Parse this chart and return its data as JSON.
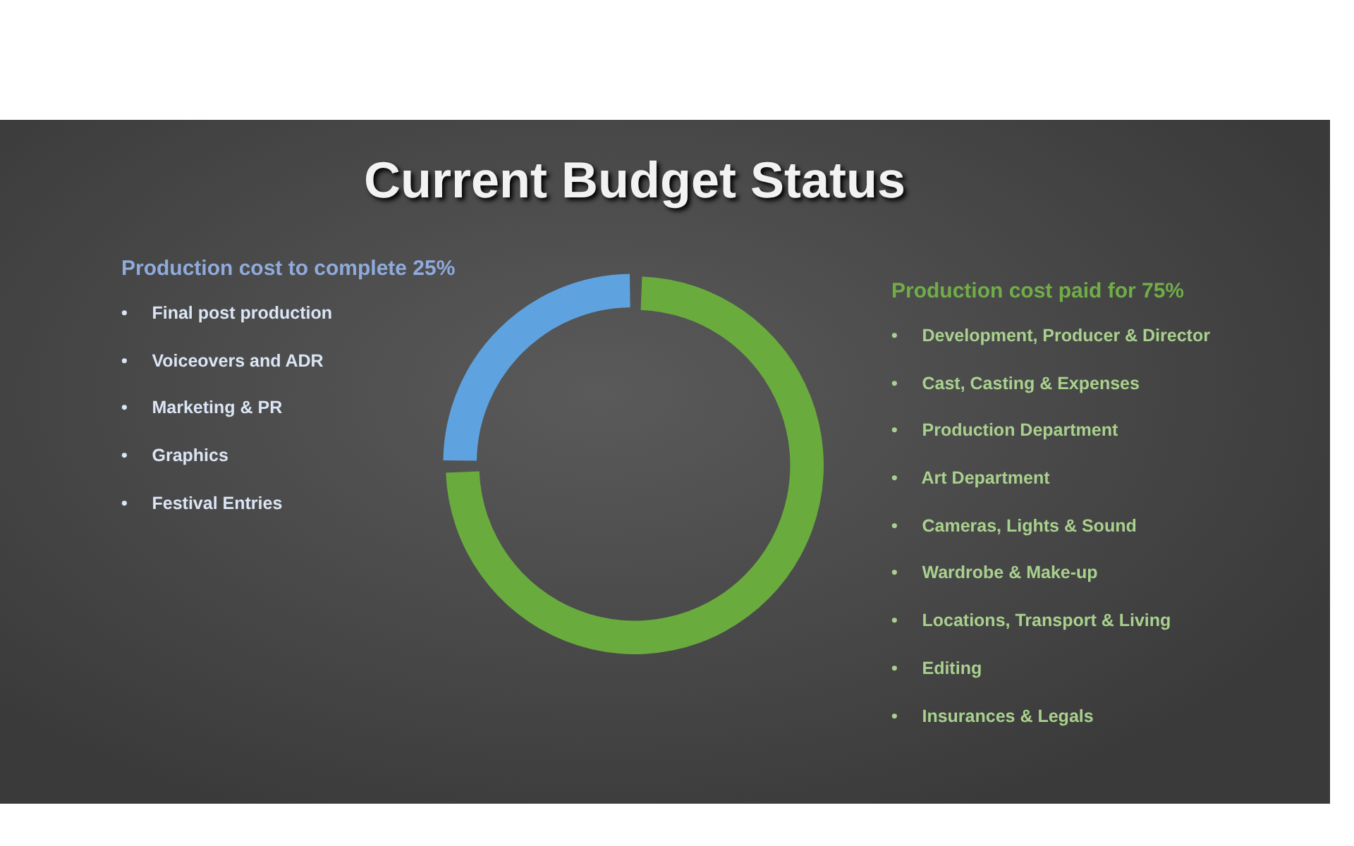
{
  "chart_data": {
    "type": "donut",
    "title": "Current Budget Status",
    "categories": [
      "Production cost to complete",
      "Production cost paid for"
    ],
    "values": [
      25,
      75
    ],
    "value_labels": [
      "25%",
      "75%"
    ],
    "colors": [
      "#5ea3e0",
      "#6aab3e"
    ],
    "legend": false,
    "annotations": [
      "•     Final post production",
      "•     Voiceovers and ADR",
      "•     Marketing & PR",
      "•     Graphics",
      "•     Festival Entries",
      "•     Development, Producer & Director",
      "•     Cast, Casting & Expenses",
      "•     Production Department",
      "•     Art Department",
      "•     Cameras, Lights & Sound",
      "•     Wardrobe & Make-up",
      "•     Locations, Transport & Living",
      "•     Editing",
      "•     Insurances & Legals"
    ]
  }
}
